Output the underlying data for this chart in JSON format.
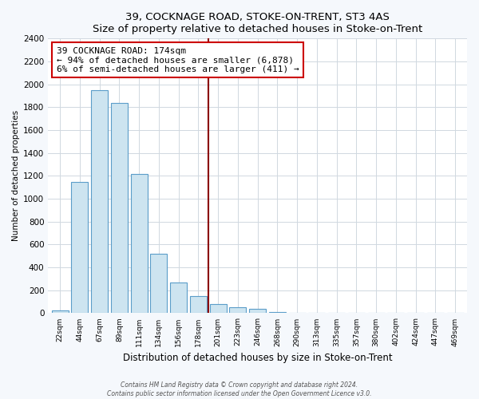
{
  "title": "39, COCKNAGE ROAD, STOKE-ON-TRENT, ST3 4AS",
  "subtitle": "Size of property relative to detached houses in Stoke-on-Trent",
  "xlabel": "Distribution of detached houses by size in Stoke-on-Trent",
  "ylabel": "Number of detached properties",
  "bin_labels": [
    "22sqm",
    "44sqm",
    "67sqm",
    "89sqm",
    "111sqm",
    "134sqm",
    "156sqm",
    "178sqm",
    "201sqm",
    "223sqm",
    "246sqm",
    "268sqm",
    "290sqm",
    "313sqm",
    "335sqm",
    "357sqm",
    "380sqm",
    "402sqm",
    "424sqm",
    "447sqm",
    "469sqm"
  ],
  "bar_heights": [
    25,
    1150,
    1950,
    1840,
    1220,
    520,
    265,
    150,
    80,
    50,
    35,
    12,
    5,
    3,
    2,
    1,
    0,
    0,
    0,
    0,
    0
  ],
  "bar_color": "#cde4f0",
  "bar_edge_color": "#5b9dc9",
  "property_line_x": 7.5,
  "property_line_color": "#8b0000",
  "annotation_title": "39 COCKNAGE ROAD: 174sqm",
  "annotation_line1": "← 94% of detached houses are smaller (6,878)",
  "annotation_line2": "6% of semi-detached houses are larger (411) →",
  "annotation_box_facecolor": "white",
  "annotation_box_edgecolor": "#cc0000",
  "ylim": [
    0,
    2400
  ],
  "yticks": [
    0,
    200,
    400,
    600,
    800,
    1000,
    1200,
    1400,
    1600,
    1800,
    2000,
    2200,
    2400
  ],
  "figure_facecolor": "#f5f8fc",
  "axes_facecolor": "#ffffff",
  "grid_color": "#d0d8e0",
  "footer_line1": "Contains HM Land Registry data © Crown copyright and database right 2024.",
  "footer_line2": "Contains public sector information licensed under the Open Government Licence v3.0."
}
